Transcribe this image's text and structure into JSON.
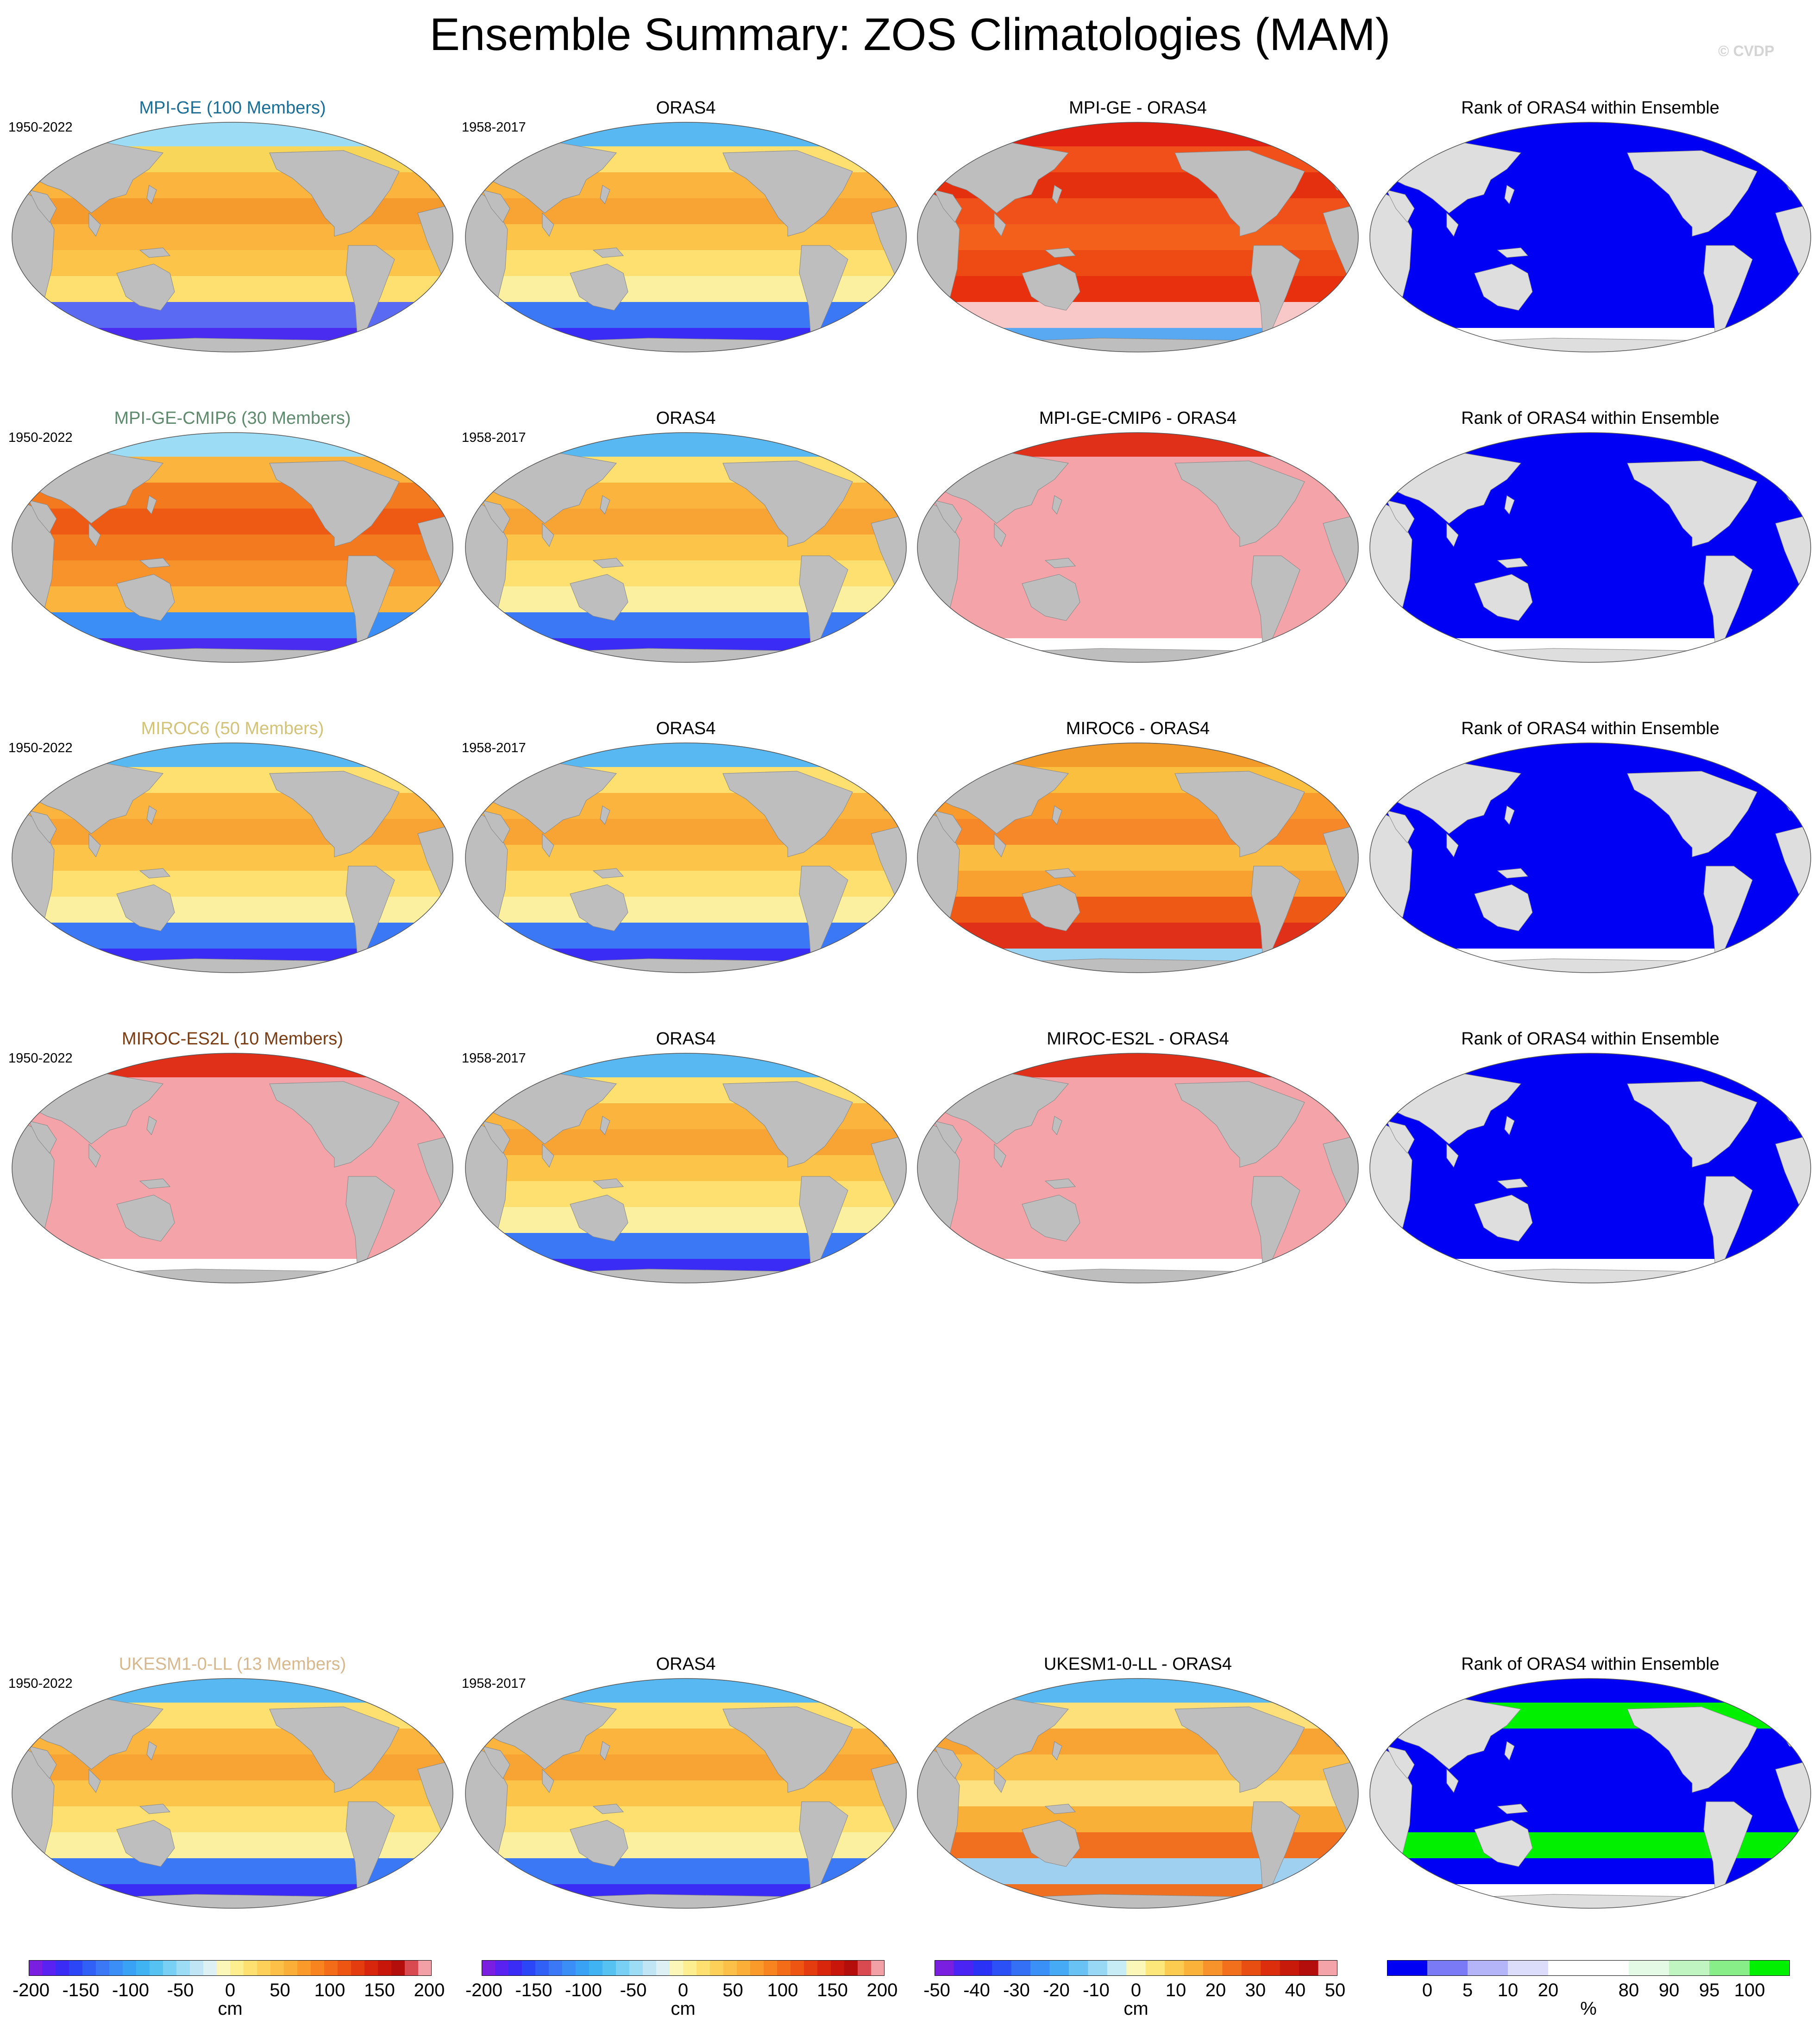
{
  "title": "Ensemble Summary: ZOS Climatologies (MAM)",
  "watermark": "© CVDP",
  "rows": [
    {
      "ensemble_title": "MPI-GE (100 Members)",
      "ensemble_title_color": "#1c6e94",
      "ensemble_period": "1950-2022",
      "obs_title": "ORAS4",
      "obs_period": "1958-2017",
      "diff_title": "MPI-GE - ORAS4",
      "rank_title": "Rank of ORAS4 within Ensemble",
      "mean_style": "warm",
      "diff_style": "red",
      "rank_style": "mostly-blue"
    },
    {
      "ensemble_title": "MPI-GE-CMIP6 (30 Members)",
      "ensemble_title_color": "#5f8a6e",
      "ensemble_period": "1950-2022",
      "obs_title": "ORAS4",
      "obs_period": "1958-2017",
      "diff_title": "MPI-GE-CMIP6 - ORAS4",
      "rank_title": "Rank of ORAS4 within Ensemble",
      "mean_style": "hot",
      "diff_style": "pink",
      "rank_style": "blue"
    },
    {
      "ensemble_title": "MIROC6 (50 Members)",
      "ensemble_title_color": "#d2c27a",
      "ensemble_period": "1950-2022",
      "obs_title": "ORAS4",
      "obs_period": "1958-2017",
      "diff_title": "MIROC6 - ORAS4",
      "rank_title": "Rank of ORAS4 within Ensemble",
      "mean_style": "normal",
      "diff_style": "orange",
      "rank_style": "mostly-blue"
    },
    {
      "ensemble_title": "MIROC-ES2L (10 Members)",
      "ensemble_title_color": "#7a3c12",
      "ensemble_period": "1950-2022",
      "obs_title": "ORAS4",
      "obs_period": "1958-2017",
      "diff_title": "MIROC-ES2L - ORAS4",
      "rank_title": "Rank of ORAS4 within Ensemble",
      "mean_style": "pink",
      "diff_style": "pink",
      "rank_style": "blue"
    },
    {
      "ensemble_title": "UKESM1-0-LL (13 Members)",
      "ensemble_title_color": "#d7b88f",
      "ensemble_period": "1950-2022",
      "obs_title": "ORAS4",
      "obs_period": "1958-2017",
      "diff_title": "UKESM1-0-LL - ORAS4",
      "rank_title": "Rank of ORAS4 within Ensemble",
      "mean_style": "normal",
      "diff_style": "mixed",
      "rank_style": "green"
    }
  ],
  "colorbars": [
    {
      "name": "climatology",
      "unit": "cm",
      "ticks": [
        "-200",
        "-150",
        "-100",
        "-50",
        "0",
        "50",
        "100",
        "150",
        "200"
      ],
      "colors": [
        "#7a1fe0",
        "#5a22f0",
        "#3a2cf5",
        "#2a46f6",
        "#3060f6",
        "#3a78f6",
        "#3a8ef6",
        "#3aa2f4",
        "#40b4f2",
        "#55c2f2",
        "#78d0f4",
        "#9cdcf4",
        "#c0e6f6",
        "#ddf0f4",
        "#fbf7b8",
        "#fdee90",
        "#fde070",
        "#fdd05a",
        "#fcc048",
        "#fbae38",
        "#fa9a2a",
        "#f88420",
        "#f46c18",
        "#ee5412",
        "#e43c0e",
        "#d8260c",
        "#c8160a",
        "#b40e0c",
        "#d84a50",
        "#f2a0a6"
      ]
    },
    {
      "name": "climatology-obs",
      "unit": "cm",
      "ticks": [
        "-200",
        "-150",
        "-100",
        "-50",
        "0",
        "50",
        "100",
        "150",
        "200"
      ],
      "colors": [
        "#7a1fe0",
        "#5a22f0",
        "#3a2cf5",
        "#2a46f6",
        "#3060f6",
        "#3a78f6",
        "#3a8ef6",
        "#3aa2f4",
        "#40b4f2",
        "#55c2f2",
        "#78d0f4",
        "#9cdcf4",
        "#c0e6f6",
        "#ddf0f4",
        "#fbf7b8",
        "#fdee90",
        "#fde070",
        "#fdd05a",
        "#fcc048",
        "#fbae38",
        "#fa9a2a",
        "#f88420",
        "#f46c18",
        "#ee5412",
        "#e43c0e",
        "#d8260c",
        "#c8160a",
        "#b40e0c",
        "#d84a50",
        "#f2a0a6"
      ]
    },
    {
      "name": "difference",
      "unit": "cm",
      "ticks": [
        "-50",
        "-40",
        "-30",
        "-20",
        "-10",
        "0",
        "10",
        "20",
        "30",
        "40",
        "50"
      ],
      "colors": [
        "#7a1fe0",
        "#4a24f2",
        "#2a32f6",
        "#2a50f6",
        "#3470f6",
        "#3a90f6",
        "#46aaf4",
        "#68c2f4",
        "#98d8f4",
        "#c8ecf6",
        "#fbf7b8",
        "#fde67a",
        "#fccc50",
        "#fbb23a",
        "#f8922a",
        "#f2701c",
        "#e84e12",
        "#dc2e0c",
        "#c81a0a",
        "#b40e0c",
        "#f4a4a8"
      ]
    },
    {
      "name": "rank",
      "unit": "%",
      "ticks": [
        "0",
        "5",
        "10",
        "20",
        "80",
        "90",
        "95",
        "100"
      ],
      "colors": [
        "#0000f5",
        "#7a7af7",
        "#b4b4f9",
        "#dcdcfb",
        "#ffffff",
        "#ffffff",
        "#e4fae4",
        "#c0f4c0",
        "#88ee88",
        "#00f000"
      ]
    }
  ]
}
